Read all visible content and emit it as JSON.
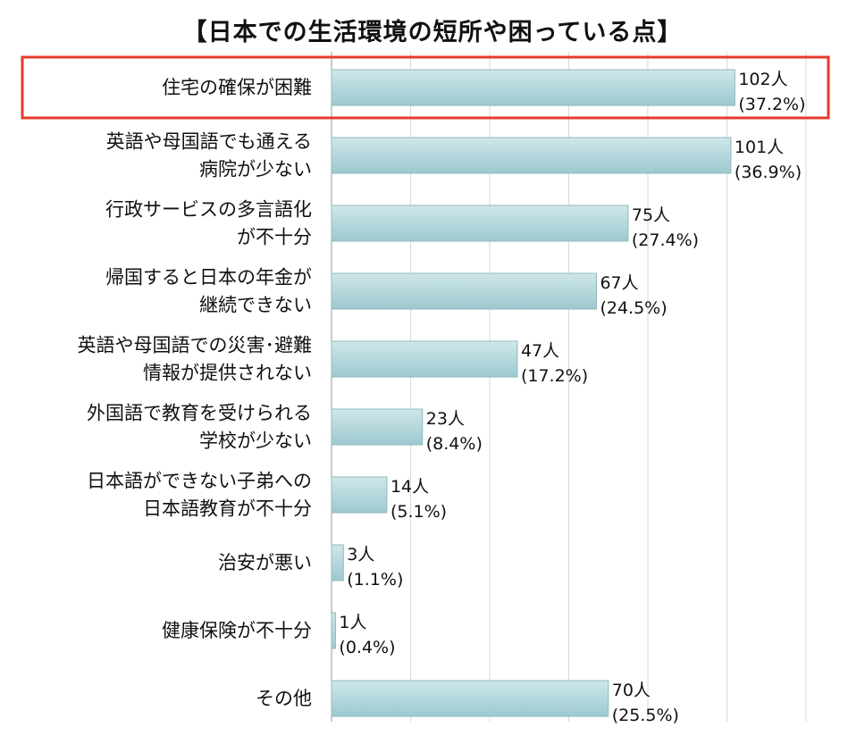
{
  "title": "【日本での生活環境の短所や困っている点】",
  "highlight": {
    "category_index": 0,
    "color": "#e53b2c"
  },
  "colors": {
    "bar_fill_top": "#cfe7ea",
    "bar_fill_bottom": "#9cc9cf",
    "bar_stroke": "#8fb9bf",
    "grid": "#d9d9d9"
  },
  "chart_data": {
    "type": "bar",
    "orientation": "horizontal",
    "categories": [
      [
        "住宅の確保が困難"
      ],
      [
        "英語や母国語でも通える",
        "病院が少ない"
      ],
      [
        "行政サービスの多言語化",
        "が不十分"
      ],
      [
        "帰国すると日本の年金が",
        "継続できない"
      ],
      [
        "英語や母国語での災害･避難",
        "情報が提供されない"
      ],
      [
        "外国語で教育を受けられる",
        "学校が少ない"
      ],
      [
        "日本語ができない子弟への",
        "日本語教育が不十分"
      ],
      [
        "治安が悪い"
      ],
      [
        "健康保険が不十分"
      ],
      [
        "その他"
      ]
    ],
    "values": [
      102,
      101,
      75,
      67,
      47,
      23,
      14,
      3,
      1,
      70
    ],
    "count_labels": [
      "102人",
      "101人",
      "75人",
      "67人",
      "47人",
      "23人",
      "14人",
      "3人",
      "1人",
      "70人"
    ],
    "percent_labels": [
      "(37.2%)",
      "(36.9%)",
      "(27.4%)",
      "(24.5%)",
      "(17.2%)",
      "(8.4%)",
      "(5.1%)",
      "(1.1%)",
      "(0.4%)",
      "(25.5%)"
    ],
    "xlim": [
      0,
      120
    ],
    "grid": true,
    "gridline_step": 20,
    "title": "【日本での生活環境の短所や困っている点】",
    "xlabel": "",
    "ylabel": ""
  }
}
